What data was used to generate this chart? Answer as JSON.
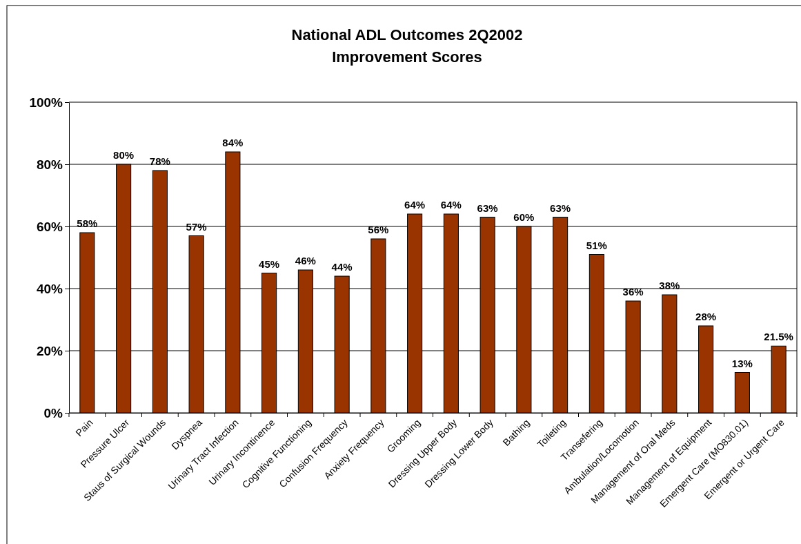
{
  "chart_data": {
    "type": "bar",
    "title": "National ADL Outcomes 2Q2002",
    "subtitle": "Improvement Scores",
    "categories": [
      "Pain",
      "Pressure Ulcer",
      "Staus of Surgical Wounds",
      "Dyspnea",
      "Urinary Tract Infection",
      "Urinary Incontinence",
      "Cognitive Functioning",
      "Confusion Frequency",
      "Anxiety Frequency",
      "Grooming",
      "Dressing Upper Body",
      "Dressing Lower Body",
      "Bathing",
      "Toileting",
      "Transefering",
      "Ambulation/Locomotion",
      "Management of Oral Meds",
      "Management of Equipment",
      "Emergent Care (MO830.01)",
      "Emergent or Urgent Care"
    ],
    "values": [
      58,
      80,
      78,
      57,
      84,
      45,
      46,
      44,
      56,
      64,
      64,
      63,
      60,
      63,
      51,
      36,
      38,
      28,
      13,
      21.5
    ],
    "value_labels": [
      "58%",
      "80%",
      "78%",
      "57%",
      "84%",
      "45%",
      "46%",
      "44%",
      "56%",
      "64%",
      "64%",
      "63%",
      "60%",
      "63%",
      "51%",
      "36%",
      "38%",
      "28%",
      "13%",
      "21.5%"
    ],
    "color": "#993300",
    "ylim": [
      0,
      100
    ],
    "yticks": [
      {
        "value": 0,
        "label": "0%"
      },
      {
        "value": 20,
        "label": "20%"
      },
      {
        "value": 40,
        "label": "40%"
      },
      {
        "value": 60,
        "label": "60%"
      },
      {
        "value": 80,
        "label": "80%"
      },
      {
        "value": 100,
        "label": "100%"
      }
    ],
    "grid": "y"
  }
}
